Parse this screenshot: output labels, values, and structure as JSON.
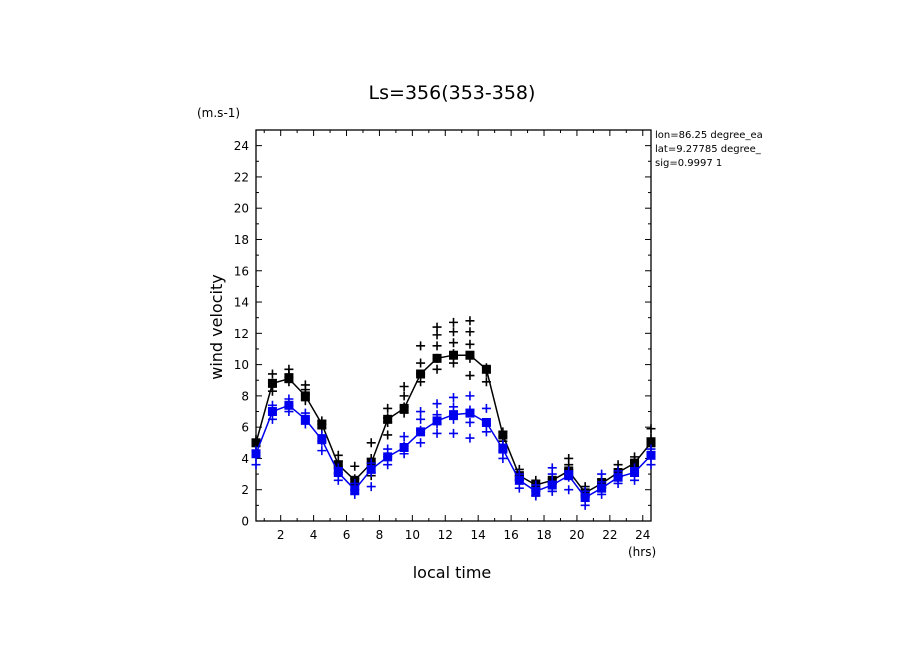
{
  "chart_data": {
    "type": "line",
    "title": "Ls=356(353-358)",
    "xlabel": "local time",
    "ylabel": "wind velocity",
    "x_unit": "(hrs)",
    "y_unit": "(m.s-1)",
    "xlim": [
      0.5,
      24.5
    ],
    "ylim": [
      0,
      25
    ],
    "xticks": [
      2,
      4,
      6,
      8,
      10,
      12,
      14,
      16,
      18,
      20,
      22,
      24
    ],
    "yticks": [
      0,
      2,
      4,
      6,
      8,
      10,
      12,
      14,
      16,
      18,
      20,
      22,
      24
    ],
    "info_lines": [
      "lon=86.25 degree_ea",
      "lat=9.27785 degree_",
      "sig=0.9997 1"
    ],
    "x": [
      0.5,
      1.5,
      2.5,
      3.5,
      4.5,
      5.5,
      6.5,
      7.5,
      8.5,
      9.5,
      10.5,
      11.5,
      12.5,
      13.5,
      14.5,
      15.5,
      16.5,
      17.5,
      18.5,
      19.5,
      20.5,
      21.5,
      22.5,
      23.5,
      24.5
    ],
    "series": [
      {
        "color": "#000000",
        "mean": [
          5.0,
          8.8,
          9.1,
          8.0,
          6.2,
          3.6,
          2.6,
          3.7,
          6.5,
          7.2,
          9.4,
          10.4,
          10.6,
          10.6,
          9.7,
          5.5,
          2.9,
          2.3,
          2.6,
          3.2,
          1.8,
          2.4,
          3.1,
          3.7,
          5.0
        ],
        "scatter": [
          [
            4.9,
            5.0,
            5.2
          ],
          [
            8.3,
            8.6,
            8.8,
            9.4
          ],
          [
            8.9,
            9.2,
            9.4,
            9.7
          ],
          [
            7.7,
            8.1,
            8.4,
            8.7
          ],
          [
            5.9,
            6.2,
            6.4
          ],
          [
            3.1,
            3.5,
            3.8,
            4.2
          ],
          [
            2.3,
            2.7,
            3.5
          ],
          [
            2.9,
            3.7,
            4.0,
            5.0
          ],
          [
            5.5,
            6.3,
            6.6,
            7.2
          ],
          [
            6.9,
            7.3,
            8.0,
            8.6
          ],
          [
            8.9,
            9.4,
            10.1,
            11.2
          ],
          [
            9.7,
            10.4,
            11.2,
            11.9,
            12.4
          ],
          [
            10.1,
            10.7,
            11.4,
            12.1,
            12.7
          ],
          [
            9.3,
            10.4,
            11.3,
            12.1,
            12.8
          ],
          [
            8.9,
            9.5,
            9.8
          ],
          [
            5.1,
            5.4,
            5.7
          ],
          [
            2.6,
            2.9,
            3.3
          ],
          [
            1.6,
            2.1,
            2.6
          ],
          [
            1.9,
            2.4,
            2.7
          ],
          [
            2.9,
            3.3,
            3.6,
            4.0
          ],
          [
            1.6,
            1.9,
            2.2
          ],
          [
            2.1,
            2.4,
            2.7
          ],
          [
            2.8,
            3.2,
            3.6
          ],
          [
            3.4,
            3.8,
            4.1
          ],
          [
            4.3,
            4.9,
            5.3,
            5.9
          ]
        ]
      },
      {
        "color": "#0000ee",
        "mean": [
          4.3,
          7.0,
          7.4,
          6.5,
          5.2,
          3.1,
          2.0,
          3.3,
          4.1,
          4.7,
          5.7,
          6.4,
          6.8,
          6.9,
          6.3,
          4.6,
          2.6,
          1.9,
          2.3,
          2.9,
          1.5,
          2.1,
          2.8,
          3.1,
          4.2
        ],
        "scatter": [
          [
            3.6,
            4.1,
            4.5
          ],
          [
            6.5,
            7.0,
            7.4
          ],
          [
            7.0,
            7.4,
            7.8
          ],
          [
            6.2,
            6.5,
            6.9
          ],
          [
            4.5,
            5.1,
            5.5
          ],
          [
            2.6,
            3.0,
            3.4
          ],
          [
            1.7,
            2.0,
            2.4
          ],
          [
            2.2,
            3.1,
            3.7
          ],
          [
            3.6,
            4.1,
            4.6
          ],
          [
            4.3,
            4.8,
            5.4
          ],
          [
            5.0,
            5.8,
            6.5,
            7.0
          ],
          [
            5.6,
            6.2,
            6.8,
            7.5
          ],
          [
            5.6,
            6.5,
            7.3,
            7.9
          ],
          [
            5.3,
            6.3,
            7.1,
            8.0
          ],
          [
            5.7,
            6.2,
            7.2
          ],
          [
            4.0,
            4.5,
            4.9
          ],
          [
            2.1,
            2.6,
            3.0
          ],
          [
            1.6,
            1.9,
            2.3
          ],
          [
            1.9,
            2.5,
            3.0,
            3.4
          ],
          [
            2.0,
            2.8,
            3.2
          ],
          [
            1.0,
            1.5,
            1.9
          ],
          [
            1.7,
            2.1,
            2.5,
            3.0
          ],
          [
            2.4,
            2.8,
            3.2
          ],
          [
            2.6,
            3.1,
            3.4
          ],
          [
            3.6,
            4.1,
            4.6
          ]
        ]
      }
    ]
  }
}
